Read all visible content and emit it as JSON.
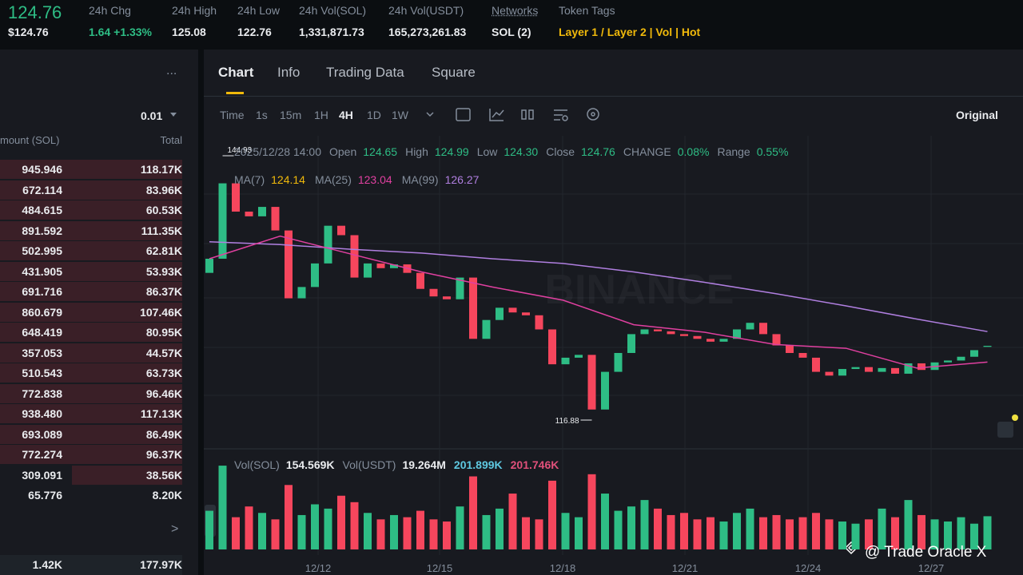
{
  "header": {
    "price": "124.76",
    "price_usd": "$124.76",
    "stats": [
      {
        "label": "24h Chg",
        "value": "1.64 +1.33%"
      },
      {
        "label": "24h High",
        "value": "125.08"
      },
      {
        "label": "24h Low",
        "value": "122.76"
      },
      {
        "label": "24h Vol(SOL)",
        "value": "1,331,871.73"
      },
      {
        "label": "24h Vol(USDT)",
        "value": "165,273,261.83"
      },
      {
        "label": "Networks",
        "value": "SOL (2)"
      },
      {
        "label": "Token Tags",
        "value": "Layer 1 / Layer 2 | Vol | Hot"
      }
    ]
  },
  "orderbook": {
    "more": "...",
    "precision": "0.01",
    "columns": [
      "mount (SOL)",
      "Total"
    ],
    "rows": [
      [
        "945.946",
        "118.17K"
      ],
      [
        "672.114",
        "83.96K"
      ],
      [
        "484.615",
        "60.53K"
      ],
      [
        "891.592",
        "111.35K"
      ],
      [
        "502.995",
        "62.81K"
      ],
      [
        "431.905",
        "53.93K"
      ],
      [
        "691.716",
        "86.37K"
      ],
      [
        "860.679",
        "107.46K"
      ],
      [
        "648.419",
        "80.95K"
      ],
      [
        "357.053",
        "44.57K"
      ],
      [
        "510.543",
        "63.73K"
      ],
      [
        "772.838",
        "96.46K"
      ],
      [
        "938.480",
        "117.13K"
      ],
      [
        "693.089",
        "86.49K"
      ],
      [
        "772.274",
        "96.37K"
      ],
      [
        "309.091",
        "38.56K"
      ],
      [
        "65.776",
        "8.20K"
      ]
    ],
    "expand": ">",
    "footer": [
      "1.42K",
      "177.97K"
    ]
  },
  "tabs": [
    "Chart",
    "Info",
    "Trading Data",
    "Square"
  ],
  "intervals": [
    "Time",
    "1s",
    "15m",
    "1H",
    "4H",
    "1D",
    "1W"
  ],
  "active_interval": "4H",
  "view": "Original",
  "chart": {
    "date": "2025/12/28 14:00",
    "ohlc": [
      {
        "label": "Open",
        "value": "124.65"
      },
      {
        "label": "High",
        "value": "124.99"
      },
      {
        "label": "Low",
        "value": "124.30"
      },
      {
        "label": "Close",
        "value": "124.76"
      },
      {
        "label": "CHANGE",
        "value": "0.08%"
      },
      {
        "label": "Range",
        "value": "0.55%"
      }
    ],
    "ma": [
      {
        "label": "MA(7)",
        "value": "124.14",
        "color": "#f0b90b"
      },
      {
        "label": "MA(25)",
        "value": "123.04",
        "color": "#e040a0"
      },
      {
        "label": "MA(99)",
        "value": "126.27",
        "color": "#b07fe0"
      }
    ],
    "vol_legend": [
      {
        "label": "Vol(SOL)",
        "value": "154.569K",
        "color": "#eaecef"
      },
      {
        "label": "Vol(USDT)",
        "value": "19.264M",
        "color": "#eaecef"
      },
      {
        "label": "",
        "value": "201.899K",
        "color": "#5ec8e0"
      },
      {
        "label": "",
        "value": "201.746K",
        "color": "#e0507a"
      }
    ],
    "high_marker": {
      "label": "144.93",
      "value": 144.93
    },
    "low_marker": {
      "label": "116.88",
      "value": 116.88
    },
    "ylim": [
      114,
      146.2
    ],
    "vol_ylim": [
      0,
      420
    ],
    "up_color": "#2ebd85",
    "down_color": "#f6465d",
    "candles": [
      [
        132.5,
        134
      ],
      [
        134,
        142
      ],
      [
        142,
        139
      ],
      [
        139,
        138.5
      ],
      [
        138.5,
        139.5
      ],
      [
        139.5,
        137
      ],
      [
        137,
        129.8
      ],
      [
        129.8,
        131
      ],
      [
        131,
        133.5
      ],
      [
        133.5,
        137.5
      ],
      [
        137.5,
        136.5
      ],
      [
        136.5,
        132
      ],
      [
        132,
        133.5
      ],
      [
        133.5,
        133
      ],
      [
        133,
        133.4
      ],
      [
        133.4,
        132.5
      ],
      [
        132.5,
        130.8
      ],
      [
        130.8,
        130
      ],
      [
        130,
        129.7
      ],
      [
        129.7,
        132
      ],
      [
        132,
        125.5
      ],
      [
        125.5,
        127.5
      ],
      [
        127.5,
        128.8
      ],
      [
        128.8,
        128.3
      ],
      [
        128.3,
        128
      ],
      [
        128,
        126.5
      ],
      [
        126.5,
        122.8
      ],
      [
        122.8,
        123.5
      ],
      [
        123.5,
        123.8
      ],
      [
        123.8,
        118
      ],
      [
        118,
        122
      ],
      [
        122,
        124
      ],
      [
        124,
        126
      ],
      [
        126,
        126.5
      ],
      [
        126.5,
        126.3
      ],
      [
        126.3,
        126
      ],
      [
        126,
        125.8
      ],
      [
        125.8,
        125.5
      ],
      [
        125.5,
        125.2
      ],
      [
        125.2,
        125.5
      ],
      [
        125.5,
        126.5
      ],
      [
        126.5,
        127.2
      ],
      [
        127.2,
        126
      ],
      [
        126,
        124.8
      ],
      [
        124.8,
        124
      ],
      [
        124,
        123.5
      ],
      [
        123.5,
        122
      ],
      [
        122,
        121.6
      ],
      [
        121.6,
        122.3
      ],
      [
        122.3,
        122.5
      ],
      [
        122.5,
        122
      ],
      [
        122,
        122.4
      ],
      [
        122.4,
        121.8
      ],
      [
        121.8,
        122.9
      ],
      [
        122.9,
        122.2
      ],
      [
        122.2,
        123
      ],
      [
        123,
        123.2
      ],
      [
        123.2,
        123.6
      ],
      [
        123.6,
        124.3
      ],
      [
        124.65,
        124.76
      ]
    ],
    "volumes": [
      180,
      390,
      150,
      200,
      170,
      140,
      300,
      160,
      210,
      190,
      250,
      220,
      170,
      140,
      160,
      150,
      180,
      140,
      130,
      200,
      340,
      160,
      190,
      260,
      150,
      140,
      320,
      170,
      150,
      350,
      260,
      180,
      200,
      230,
      190,
      160,
      170,
      140,
      150,
      130,
      170,
      190,
      150,
      160,
      140,
      150,
      170,
      140,
      130,
      120,
      140,
      190,
      150,
      230,
      160,
      140,
      130,
      150,
      120,
      154.569
    ],
    "ma25": [
      134,
      136.4,
      134.5,
      132.6,
      131,
      129.6,
      127,
      126.2,
      124.9,
      124.5,
      122.4,
      123.04
    ],
    "ma99": [
      135.8,
      135.5,
      135,
      134.6,
      134,
      133.5,
      132.6,
      131.5,
      130.3,
      129,
      127.6,
      126.27
    ],
    "x_labels": [
      "12/12",
      "12/15",
      "12/18",
      "12/21",
      "12/24",
      "12/27"
    ],
    "watermark_logo": "BINANCE"
  },
  "watermark": "@ Trade Oracle X"
}
